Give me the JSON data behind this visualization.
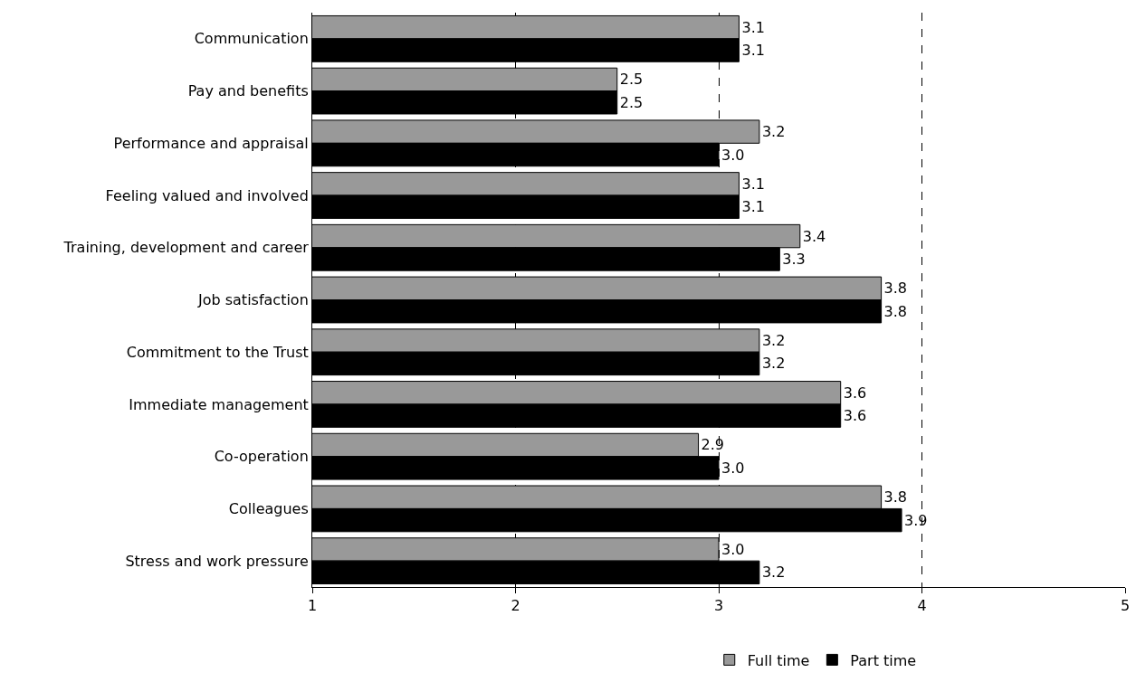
{
  "chart_data": {
    "type": "bar",
    "orientation": "horizontal",
    "categories": [
      "Communication",
      "Pay and benefits",
      "Performance and appraisal",
      "Feeling valued and involved",
      "Training, development and career",
      "Job satisfaction",
      "Commitment to the Trust",
      "Immediate management",
      "Co-operation",
      "Colleagues",
      "Stress and work pressure"
    ],
    "series": [
      {
        "name": "Full time",
        "color": "#999999",
        "values": [
          3.1,
          2.5,
          3.2,
          3.1,
          3.4,
          3.8,
          3.2,
          3.6,
          2.9,
          3.8,
          3.0
        ],
        "value_labels": [
          "3.1",
          "2.5",
          "3.2",
          "3.1",
          "3.4",
          "3.8",
          "3.2",
          "3.6",
          "2.9",
          "3.8",
          "3.0"
        ]
      },
      {
        "name": "Part time",
        "color": "#000000",
        "values": [
          3.1,
          2.5,
          3.0,
          3.1,
          3.3,
          3.8,
          3.2,
          3.6,
          3.0,
          3.9,
          3.2
        ],
        "value_labels": [
          "3.1",
          "2.5",
          "3.0",
          "3.1",
          "3.3",
          "3.8",
          "3.2",
          "3.6",
          "3.0",
          "3.9",
          "3.2"
        ]
      }
    ],
    "xlim": [
      1,
      5
    ],
    "xticks": [
      1,
      2,
      3,
      4,
      5
    ],
    "grid": "x",
    "line_style": "dashed",
    "legend": "bottom"
  }
}
